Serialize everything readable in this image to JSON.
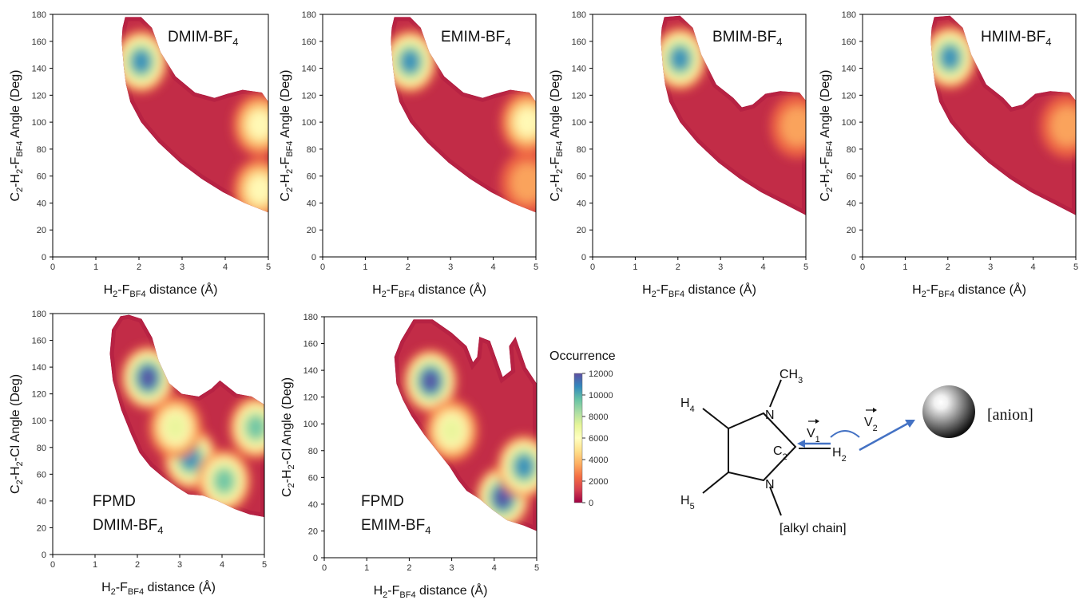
{
  "colorbar": {
    "title": "Occurrence",
    "ticks": [
      0,
      2000,
      4000,
      6000,
      8000,
      10000,
      12000
    ],
    "max": 12000,
    "colors": [
      "#9e0142",
      "#d53e4f",
      "#f46d43",
      "#fdae61",
      "#fee08b",
      "#ffffbf",
      "#e6f598",
      "#abdda4",
      "#66c2a5",
      "#3288bd",
      "#5e4fa2"
    ]
  },
  "chart_data": [
    {
      "type": "heatmap",
      "inset_lines": [
        {
          "base": "DMIM-BF",
          "sub": "4"
        }
      ],
      "xlabel": {
        "a": "H",
        "a_sub": "2",
        "b": "-F",
        "b_sub": "BF4",
        "c": " distance (Å)"
      },
      "ylabel": [
        {
          "t": "C",
          "s": "2"
        },
        {
          "t": "-H",
          "s": "2"
        },
        {
          "t": "-F",
          "s": "BF4"
        },
        {
          "t": " Angle (Deg)",
          "s": ""
        }
      ],
      "xlim": [
        0,
        5
      ],
      "xticks": [
        0,
        1,
        2,
        3,
        4,
        5
      ],
      "ylim": [
        0,
        180
      ],
      "yticks": [
        0,
        20,
        40,
        60,
        80,
        100,
        120,
        140,
        160,
        180
      ],
      "hotspots": [
        {
          "x": 2.05,
          "y": 145,
          "intensity": 10500
        },
        {
          "x": 4.8,
          "y": 98,
          "intensity": 5500
        },
        {
          "x": 4.8,
          "y": 50,
          "intensity": 5200
        }
      ]
    },
    {
      "type": "heatmap",
      "inset_lines": [
        {
          "base": "EMIM-BF",
          "sub": "4"
        }
      ],
      "xlabel": {
        "a": "H",
        "a_sub": "2",
        "b": "-F",
        "b_sub": "BF4",
        "c": " distance (Å)"
      },
      "ylabel": [
        {
          "t": "C",
          "s": "2"
        },
        {
          "t": "-H",
          "s": "2"
        },
        {
          "t": "-F",
          "s": "BF4"
        },
        {
          "t": " Angle (Deg)",
          "s": ""
        }
      ],
      "xlim": [
        0,
        5
      ],
      "xticks": [
        0,
        1,
        2,
        3,
        4,
        5
      ],
      "ylim": [
        0,
        180
      ],
      "yticks": [
        0,
        20,
        40,
        60,
        80,
        100,
        120,
        140,
        160,
        180
      ],
      "hotspots": [
        {
          "x": 2.05,
          "y": 145,
          "intensity": 10000
        },
        {
          "x": 4.8,
          "y": 100,
          "intensity": 4800
        },
        {
          "x": 4.8,
          "y": 55,
          "intensity": 3500
        }
      ]
    },
    {
      "type": "heatmap",
      "inset_lines": [
        {
          "base": "BMIM-BF",
          "sub": "4"
        }
      ],
      "xlabel": {
        "a": "H",
        "a_sub": "2",
        "b": "-F",
        "b_sub": "BF4",
        "c": " distance (Å)"
      },
      "ylabel": [
        {
          "t": "C",
          "s": "2"
        },
        {
          "t": "-H",
          "s": "2"
        },
        {
          "t": "-F",
          "s": "BF4"
        },
        {
          "t": " Angle (Deg)",
          "s": ""
        }
      ],
      "xlim": [
        0,
        5
      ],
      "xticks": [
        0,
        1,
        2,
        3,
        4,
        5
      ],
      "ylim": [
        0,
        180
      ],
      "yticks": [
        0,
        20,
        40,
        60,
        80,
        100,
        120,
        140,
        160,
        180
      ],
      "hotspots": [
        {
          "x": 2.05,
          "y": 147,
          "intensity": 10500
        },
        {
          "x": 4.8,
          "y": 97,
          "intensity": 3500
        }
      ]
    },
    {
      "type": "heatmap",
      "inset_lines": [
        {
          "base": "HMIM-BF",
          "sub": "4"
        }
      ],
      "xlabel": {
        "a": "H",
        "a_sub": "2",
        "b": "-F",
        "b_sub": "BF4",
        "c": " distance (Å)"
      },
      "ylabel": [
        {
          "t": "C",
          "s": "2"
        },
        {
          "t": "-H",
          "s": "2"
        },
        {
          "t": "-F",
          "s": "BF4"
        },
        {
          "t": " Angle (Deg)",
          "s": ""
        }
      ],
      "xlim": [
        0,
        5
      ],
      "xticks": [
        0,
        1,
        2,
        3,
        4,
        5
      ],
      "ylim": [
        0,
        180
      ],
      "yticks": [
        0,
        20,
        40,
        60,
        80,
        100,
        120,
        140,
        160,
        180
      ],
      "hotspots": [
        {
          "x": 2.05,
          "y": 148,
          "intensity": 10500
        },
        {
          "x": 4.8,
          "y": 97,
          "intensity": 3000
        }
      ]
    },
    {
      "type": "heatmap",
      "inset_lines": [
        {
          "base": "FPMD",
          "sub": ""
        },
        {
          "base": "DMIM-BF",
          "sub": "4"
        }
      ],
      "xlabel": {
        "a": "H",
        "a_sub": "2",
        "b": "-F",
        "b_sub": "BF4",
        "c": " distance (Å)"
      },
      "ylabel": [
        {
          "t": "C",
          "s": "2"
        },
        {
          "t": "-H",
          "s": "2"
        },
        {
          "t": "-Cl Angle (Deg)",
          "s": ""
        }
      ],
      "xlim": [
        0,
        5
      ],
      "xticks": [
        0,
        1,
        2,
        3,
        4,
        5
      ],
      "ylim": [
        0,
        180
      ],
      "yticks": [
        0,
        20,
        40,
        60,
        80,
        100,
        120,
        140,
        160,
        180
      ],
      "hotspots": [
        {
          "x": 2.25,
          "y": 132,
          "intensity": 11000
        },
        {
          "x": 3.25,
          "y": 72,
          "intensity": 10000
        },
        {
          "x": 4.05,
          "y": 55,
          "intensity": 9000
        },
        {
          "x": 4.8,
          "y": 95,
          "intensity": 8500
        },
        {
          "x": 2.9,
          "y": 95,
          "intensity": 6000
        }
      ]
    },
    {
      "type": "heatmap",
      "inset_lines": [
        {
          "base": "FPMD",
          "sub": ""
        },
        {
          "base": "EMIM-BF",
          "sub": "4"
        }
      ],
      "xlabel": {
        "a": "H",
        "a_sub": "2",
        "b": "-F",
        "b_sub": "BF4",
        "c": " distance (Å)"
      },
      "ylabel": [
        {
          "t": "C",
          "s": "2"
        },
        {
          "t": "-H",
          "s": "2"
        },
        {
          "t": "-Cl Angle (Deg)",
          "s": ""
        }
      ],
      "xlim": [
        0,
        5
      ],
      "xticks": [
        0,
        1,
        2,
        3,
        4,
        5
      ],
      "ylim": [
        0,
        180
      ],
      "yticks": [
        0,
        20,
        40,
        60,
        80,
        100,
        120,
        140,
        160,
        180
      ],
      "hotspots": [
        {
          "x": 2.5,
          "y": 132,
          "intensity": 11000
        },
        {
          "x": 4.2,
          "y": 45,
          "intensity": 11000
        },
        {
          "x": 4.7,
          "y": 68,
          "intensity": 10500
        },
        {
          "x": 3.0,
          "y": 95,
          "intensity": 6000
        }
      ]
    }
  ],
  "diagram": {
    "labels": {
      "CH3": {
        "t": "CH",
        "s": "3"
      },
      "H4": {
        "t": "H",
        "s": "4"
      },
      "H5": {
        "t": "H",
        "s": "5"
      },
      "N_top": {
        "t": "N",
        "s": ""
      },
      "N_bot": {
        "t": "N",
        "s": ""
      },
      "C2": {
        "t": "C",
        "s": "2"
      },
      "H2": {
        "t": "H",
        "s": "2"
      },
      "V1": {
        "t": "V",
        "s": "1"
      },
      "V2": {
        "t": "V",
        "s": "2"
      },
      "anion": {
        "t": "[anion]",
        "s": ""
      },
      "alkyl": {
        "t": "[alkyl chain]",
        "s": ""
      }
    },
    "arrow_color": "#4472c4"
  }
}
